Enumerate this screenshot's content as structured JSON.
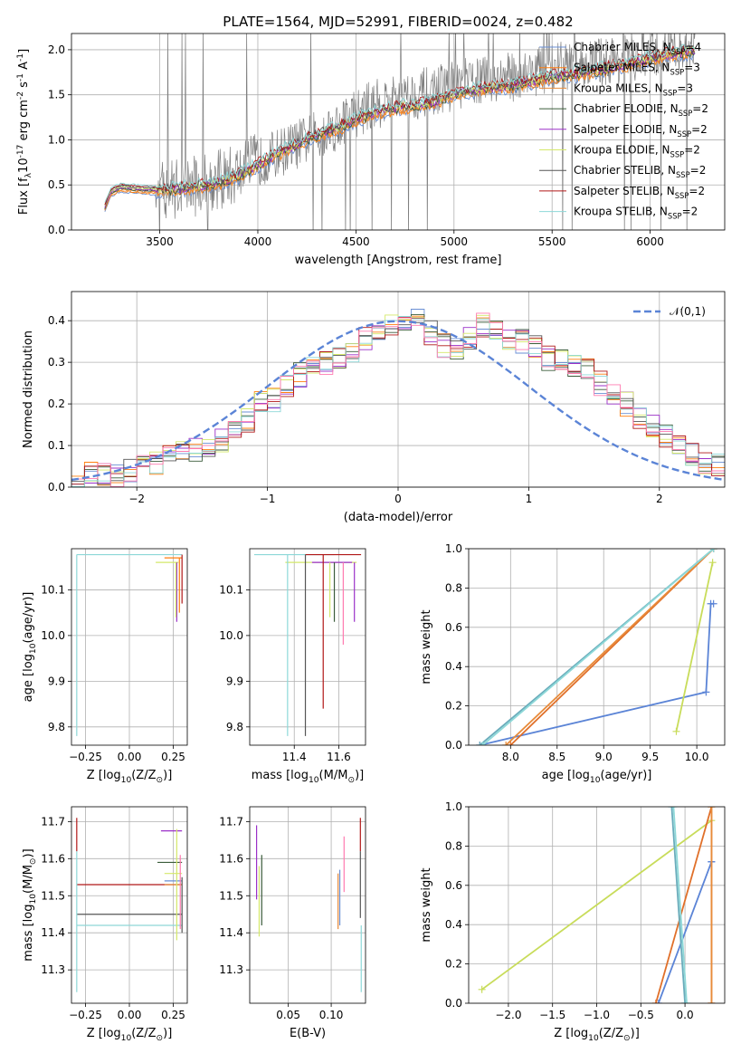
{
  "figure": {
    "title": "PLATE=1564, MJD=52991, FIBERID=0024, z=0.482"
  },
  "chart_data": [
    {
      "id": "spectrum",
      "type": "line",
      "title": "PLATE=1564, MJD=52991, FIBERID=0024, z=0.482",
      "xlabel": "wavelength [Angstrom, rest frame]",
      "ylabel": "Flux [f$_\\lambda$10$^{-17}$ erg cm$^{-2}$ s$^{-1}$ A$^{-1}$]",
      "xlim": [
        3050,
        6380
      ],
      "ylim": [
        0,
        2.18
      ],
      "xticks": [
        3500,
        4000,
        4500,
        5000,
        5500,
        6000
      ],
      "yticks": [
        0.0,
        0.5,
        1.0,
        1.5,
        2.0
      ],
      "xtick_labels": [
        "3500",
        "4000",
        "4500",
        "5000",
        "5500",
        "6000"
      ],
      "ytick_labels": [
        "0.0",
        "0.5",
        "1.0",
        "1.5",
        "2.0"
      ],
      "legend": "top-right",
      "data_envelope": {
        "x": [
          3220,
          3250,
          3300,
          3400,
          3500,
          3600,
          3700,
          3800,
          3900,
          4000,
          4100,
          4200,
          4300,
          4400,
          4500,
          4600,
          4700,
          4800,
          4900,
          5000,
          5100,
          5200,
          5300,
          5400,
          5500,
          5600,
          5700,
          5800,
          5900,
          6000,
          6100,
          6230
        ],
        "y": [
          0.25,
          0.42,
          0.48,
          0.45,
          0.45,
          0.48,
          0.5,
          0.55,
          0.62,
          0.75,
          0.85,
          0.95,
          1.05,
          1.15,
          1.3,
          1.4,
          1.45,
          1.5,
          1.55,
          1.6,
          1.65,
          1.68,
          1.7,
          1.75,
          1.8,
          1.82,
          1.85,
          1.88,
          1.9,
          1.95,
          2.0,
          2.05
        ]
      },
      "model_envelope": {
        "x": [
          3220,
          3250,
          3300,
          3400,
          3500,
          3600,
          3700,
          3800,
          3900,
          4000,
          4100,
          4200,
          4300,
          4400,
          4500,
          4600,
          4700,
          4800,
          4900,
          5000,
          5100,
          5200,
          5300,
          5400,
          5500,
          5600,
          5700,
          5800,
          5900,
          6000,
          6100,
          6230
        ],
        "y": [
          0.25,
          0.42,
          0.47,
          0.45,
          0.44,
          0.45,
          0.48,
          0.52,
          0.6,
          0.72,
          0.85,
          0.95,
          1.05,
          1.12,
          1.22,
          1.3,
          1.35,
          1.38,
          1.42,
          1.5,
          1.55,
          1.58,
          1.6,
          1.65,
          1.7,
          1.72,
          1.75,
          1.8,
          1.85,
          1.9,
          1.95,
          1.98
        ]
      },
      "series": [
        {
          "name": "Chabrier MILES, N$_{SSP}$=4",
          "color": "#6a8fd4"
        },
        {
          "name": "Salpeter MILES, N$_{SSP}$=3",
          "color": "#ff7f0e"
        },
        {
          "name": "Kroupa MILES, N$_{SSP}$=3",
          "color": "#e88b3a"
        },
        {
          "name": "Chabrier ELODIE, N$_{SSP}$=2",
          "color": "#3a5c3a"
        },
        {
          "name": "Salpeter ELODIE, N$_{SSP}$=2",
          "color": "#9b30c8"
        },
        {
          "name": "Kroupa ELODIE, N$_{SSP}$=2",
          "color": "#d4e86a"
        },
        {
          "name": "Chabrier STELIB, N$_{SSP}$=2",
          "color": "#555555"
        },
        {
          "name": "Salpeter STELIB, N$_{SSP}$=2",
          "color": "#b01818"
        },
        {
          "name": "Kroupa STELIB, N$_{SSP}$=2",
          "color": "#8dd8d8"
        }
      ]
    },
    {
      "id": "residuals",
      "type": "bar",
      "xlabel": "(data-model)/error",
      "ylabel": "Normed distribution",
      "xlim": [
        -2.5,
        2.5
      ],
      "ylim": [
        0,
        0.47
      ],
      "xticks": [
        -2,
        -1,
        0,
        1,
        2
      ],
      "yticks": [
        0.0,
        0.1,
        0.2,
        0.3,
        0.4
      ],
      "xtick_labels": [
        "−2",
        "−1",
        "0",
        "1",
        "2"
      ],
      "ytick_labels": [
        "0.0",
        "0.1",
        "0.2",
        "0.3",
        "0.4"
      ],
      "legend": "top-right",
      "bin_width": 0.1,
      "bin_start": -2.5,
      "histogram": [
        0.02,
        0.03,
        0.03,
        0.03,
        0.04,
        0.05,
        0.06,
        0.07,
        0.08,
        0.09,
        0.1,
        0.11,
        0.13,
        0.16,
        0.2,
        0.21,
        0.24,
        0.27,
        0.29,
        0.3,
        0.31,
        0.33,
        0.36,
        0.38,
        0.39,
        0.4,
        0.41,
        0.37,
        0.34,
        0.33,
        0.36,
        0.39,
        0.37,
        0.36,
        0.35,
        0.34,
        0.31,
        0.3,
        0.29,
        0.28,
        0.25,
        0.22,
        0.2,
        0.17,
        0.15,
        0.12,
        0.1,
        0.08,
        0.06,
        0.05
      ],
      "gaussian": {
        "name": "$\\mathcal{N}(0,1)$",
        "mu": 0,
        "sigma": 1,
        "color": "#5b84d6"
      }
    },
    {
      "id": "age-vs-metallicity",
      "type": "line",
      "xlabel": "Z [log$_{10}$(Z/Z$_\\odot$)]",
      "ylabel": "age  [log$_{10}$(age/yr)]",
      "xlim": [
        -0.33,
        0.33
      ],
      "ylim": [
        9.76,
        10.19
      ],
      "xticks": [
        -0.25,
        0.0,
        0.25
      ],
      "yticks": [
        9.8,
        9.9,
        10.0,
        10.1
      ],
      "xtick_labels": [
        "−0.25",
        "0.00",
        "0.25"
      ],
      "ytick_labels": [
        "9.8",
        "9.9",
        "10.0",
        "10.1"
      ],
      "corner_age": 10.177,
      "vlines": [
        {
          "x": -0.3,
          "y1": 9.78,
          "y2": 10.177,
          "color": "#8dd8d8"
        },
        {
          "x": 0.3,
          "y1": 10.07,
          "y2": 10.177,
          "color": "#b01818"
        },
        {
          "x": 0.27,
          "y1": 10.03,
          "y2": 10.16,
          "color": "#9b30c8"
        },
        {
          "x": 0.265,
          "y1": 10.04,
          "y2": 10.16,
          "color": "#d4e86a"
        },
        {
          "x": 0.285,
          "y1": 10.05,
          "y2": 10.17,
          "color": "#ff7f0e"
        }
      ],
      "hlines": [
        {
          "y": 10.177,
          "x1": -0.3,
          "x2": 0.3,
          "color": "#8dd8d8"
        },
        {
          "y": 10.16,
          "x1": 0.15,
          "x2": 0.28,
          "color": "#d4e86a"
        },
        {
          "y": 10.17,
          "x1": 0.2,
          "x2": 0.3,
          "color": "#ff7f0e"
        }
      ]
    },
    {
      "id": "age-vs-mass",
      "type": "line",
      "xlabel": "mass [log$_{10}$(M/M$_\\odot$)]",
      "ylabel": "",
      "xlim": [
        11.2,
        11.72
      ],
      "ylim": [
        9.76,
        10.19
      ],
      "xticks": [
        11.4,
        11.6
      ],
      "yticks": [
        9.8,
        9.9,
        10.0,
        10.1
      ],
      "xtick_labels": [
        "11.4",
        "11.6"
      ],
      "ytick_labels": [
        "9.8",
        "9.9",
        "10.0",
        "10.1"
      ],
      "vlines": [
        {
          "x": 11.37,
          "y1": 9.78,
          "y2": 10.177,
          "color": "#8dd8d8"
        },
        {
          "x": 11.45,
          "y1": 9.78,
          "y2": 10.177,
          "color": "#555555"
        },
        {
          "x": 11.53,
          "y1": 9.84,
          "y2": 10.177,
          "color": "#b01818"
        },
        {
          "x": 11.56,
          "y1": 10.04,
          "y2": 10.16,
          "color": "#d4e86a"
        },
        {
          "x": 11.58,
          "y1": 10.03,
          "y2": 10.16,
          "color": "#3a5c3a"
        },
        {
          "x": 11.62,
          "y1": 9.98,
          "y2": 10.16,
          "color": "#ff7bb0"
        },
        {
          "x": 11.67,
          "y1": 10.03,
          "y2": 10.16,
          "color": "#9b30c8"
        }
      ],
      "hlines": [
        {
          "y": 10.177,
          "x1": 11.22,
          "x2": 11.58,
          "color": "#8dd8d8"
        },
        {
          "y": 10.177,
          "x1": 11.45,
          "x2": 11.7,
          "color": "#b01818"
        },
        {
          "y": 10.16,
          "x1": 11.36,
          "x2": 11.68,
          "color": "#d4e86a"
        },
        {
          "y": 10.16,
          "x1": 11.48,
          "x2": 11.66,
          "color": "#9b30c8"
        }
      ]
    },
    {
      "id": "massweight-vs-age",
      "type": "line",
      "xlabel": "age  [log$_{10}$(age/yr)]",
      "ylabel": "mass weight",
      "xlim": [
        7.55,
        10.3
      ],
      "ylim": [
        0,
        1.0
      ],
      "xticks": [
        8.0,
        8.5,
        9.0,
        9.5,
        10.0
      ],
      "yticks": [
        0.0,
        0.2,
        0.4,
        0.6,
        0.8,
        1.0
      ],
      "xtick_labels": [
        "8.0",
        "8.5",
        "9.0",
        "9.5",
        "10.0"
      ],
      "ytick_labels": [
        "0.0",
        "0.2",
        "0.4",
        "0.6",
        "0.8",
        "1.0"
      ],
      "series": [
        {
          "name": "Chabrier MILES",
          "color": "#5b84d6",
          "x": [
            7.67,
            10.1,
            10.15,
            10.18
          ],
          "y": [
            0.0,
            0.27,
            0.72,
            0.72
          ]
        },
        {
          "name": "Salpeter MILES",
          "color": "#e0702a",
          "x": [
            8.0,
            10.18
          ],
          "y": [
            0.0,
            1.0
          ]
        },
        {
          "name": "Kroupa MILES",
          "color": "#e88b3a",
          "x": [
            7.95,
            10.18
          ],
          "y": [
            0.0,
            1.0
          ]
        },
        {
          "name": "Chabrier STELIB",
          "color": "#6aacbb",
          "x": [
            7.67,
            10.18
          ],
          "y": [
            0.0,
            1.0
          ]
        },
        {
          "name": "Kroupa STELIB",
          "color": "#8dd8d8",
          "x": [
            7.7,
            10.18
          ],
          "y": [
            0.0,
            1.0
          ]
        },
        {
          "name": "Kroupa ELODIE",
          "color": "#c8dc5a",
          "x": [
            9.78,
            10.17
          ],
          "y": [
            0.07,
            0.93
          ]
        }
      ]
    },
    {
      "id": "mass-vs-metallicity",
      "type": "line",
      "xlabel": "Z [log$_{10}$(Z/Z$_\\odot$)]",
      "ylabel": "mass [log$_{10}$(M/M$_\\odot$)]",
      "xlim": [
        -0.33,
        0.33
      ],
      "ylim": [
        11.21,
        11.74
      ],
      "xticks": [
        -0.25,
        0.0,
        0.25
      ],
      "yticks": [
        11.3,
        11.4,
        11.5,
        11.6,
        11.7
      ],
      "xtick_labels": [
        "−0.25",
        "0.00",
        "0.25"
      ],
      "ytick_labels": [
        "11.3",
        "11.4",
        "11.5",
        "11.6",
        "11.7"
      ],
      "vlines": [
        {
          "x": -0.3,
          "y1": 11.24,
          "y2": 11.62,
          "color": "#8dd8d8"
        },
        {
          "x": -0.3,
          "y1": 11.62,
          "y2": 11.71,
          "color": "#b01818"
        },
        {
          "x": 0.3,
          "y1": 11.4,
          "y2": 11.55,
          "color": "#555555"
        },
        {
          "x": 0.27,
          "y1": 11.38,
          "y2": 11.68,
          "color": "#d4e86a"
        },
        {
          "x": 0.29,
          "y1": 11.41,
          "y2": 11.61,
          "color": "#ff7bb0"
        }
      ],
      "hlines": [
        {
          "y": 11.53,
          "x1": -0.3,
          "x2": 0.3,
          "color": "#b01818"
        },
        {
          "y": 11.45,
          "x1": -0.3,
          "x2": 0.3,
          "color": "#555555"
        },
        {
          "y": 11.42,
          "x1": -0.3,
          "x2": 0.3,
          "color": "#8dd8d8"
        },
        {
          "y": 11.675,
          "x1": 0.18,
          "x2": 0.3,
          "color": "#9b30c8"
        },
        {
          "y": 11.59,
          "x1": 0.16,
          "x2": 0.3,
          "color": "#3a5c3a"
        },
        {
          "y": 11.56,
          "x1": 0.2,
          "x2": 0.3,
          "color": "#d4e86a"
        },
        {
          "y": 11.54,
          "x1": 0.2,
          "x2": 0.3,
          "color": "#6a8fd4"
        },
        {
          "y": 11.53,
          "x1": 0.2,
          "x2": 0.3,
          "color": "#e88b3a"
        }
      ]
    },
    {
      "id": "mass-vs-ebv",
      "type": "line",
      "xlabel": "E(B-V)",
      "ylabel": "",
      "xlim": [
        0.005,
        0.14
      ],
      "ylim": [
        11.21,
        11.74
      ],
      "xticks": [
        0.05,
        0.1
      ],
      "yticks": [
        11.3,
        11.4,
        11.5,
        11.6,
        11.7
      ],
      "xtick_labels": [
        "0.05",
        "0.10"
      ],
      "ytick_labels": [
        "11.3",
        "11.4",
        "11.5",
        "11.6",
        "11.7"
      ],
      "vlines": [
        {
          "x": 0.013,
          "y1": 11.49,
          "y2": 11.69,
          "color": "#9b30c8"
        },
        {
          "x": 0.016,
          "y1": 11.39,
          "y2": 11.58,
          "color": "#d4e86a"
        },
        {
          "x": 0.019,
          "y1": 11.42,
          "y2": 11.61,
          "color": "#3a5c3a"
        },
        {
          "x": 0.108,
          "y1": 11.41,
          "y2": 11.56,
          "color": "#e88b3a"
        },
        {
          "x": 0.11,
          "y1": 11.42,
          "y2": 11.57,
          "color": "#6a8fd4"
        },
        {
          "x": 0.115,
          "y1": 11.51,
          "y2": 11.66,
          "color": "#ff7bb0"
        },
        {
          "x": 0.134,
          "y1": 11.62,
          "y2": 11.71,
          "color": "#b01818"
        },
        {
          "x": 0.134,
          "y1": 11.44,
          "y2": 11.62,
          "color": "#555555"
        },
        {
          "x": 0.135,
          "y1": 11.24,
          "y2": 11.42,
          "color": "#8dd8d8"
        }
      ]
    },
    {
      "id": "massweight-vs-metallicity",
      "type": "line",
      "xlabel": "Z [log$_{10}$(Z/Z$_\\odot$)]",
      "ylabel": "mass weight",
      "xlim": [
        -2.45,
        0.45
      ],
      "ylim": [
        0,
        1.0
      ],
      "xticks": [
        -2.0,
        -1.5,
        -1.0,
        -0.5,
        0.0
      ],
      "yticks": [
        0.0,
        0.2,
        0.4,
        0.6,
        0.8,
        1.0
      ],
      "xtick_labels": [
        "−2.0",
        "−1.5",
        "−1.0",
        "−0.5",
        "0.0"
      ],
      "ytick_labels": [
        "0.0",
        "0.2",
        "0.4",
        "0.6",
        "0.8",
        "1.0"
      ],
      "series": [
        {
          "name": "Kroupa ELODIE",
          "color": "#c8dc5a",
          "x": [
            -2.3,
            0.3
          ],
          "y": [
            0.07,
            0.93
          ]
        },
        {
          "name": "Chabrier MILES",
          "color": "#5b84d6",
          "x": [
            -0.3,
            0.3,
            0.3
          ],
          "y": [
            0.0,
            0.72,
            0.72
          ]
        },
        {
          "name": "Salpeter MILES",
          "color": "#e0702a",
          "x": [
            -0.33,
            0.3,
            0.3
          ],
          "y": [
            0.0,
            1.0,
            0.0
          ]
        },
        {
          "name": "Kroupa MILES",
          "color": "#e88b3a",
          "x": [
            0.3,
            0.3
          ],
          "y": [
            0.0,
            1.0
          ]
        },
        {
          "name": "Chabrier STELIB",
          "color": "#6aacbb",
          "x": [
            -0.15,
            0.0
          ],
          "y": [
            1.0,
            0.0
          ]
        },
        {
          "name": "Kroupa STELIB",
          "color": "#8dd8d8",
          "x": [
            -0.13,
            0.02
          ],
          "y": [
            1.0,
            0.0
          ]
        }
      ]
    }
  ]
}
